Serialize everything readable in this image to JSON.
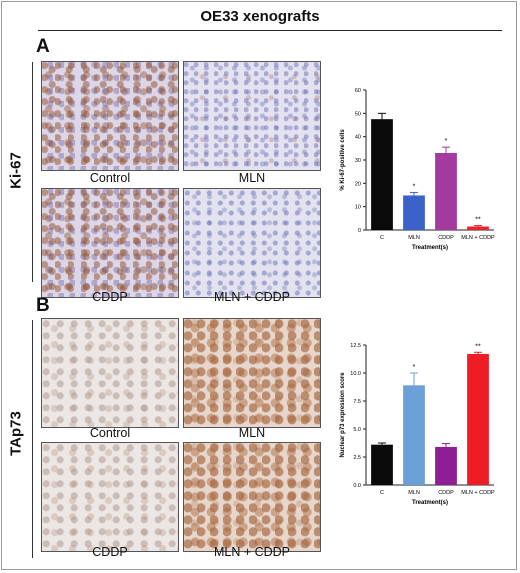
{
  "figure_title": "OE33 xenografts",
  "panels": [
    {
      "letter": "A",
      "stain": "Ki-67",
      "images": [
        {
          "caption": "Control",
          "pattern": "ki"
        },
        {
          "caption": "MLN",
          "pattern": "ki-low"
        },
        {
          "caption": "CDDP",
          "pattern": "ki"
        },
        {
          "caption": "MLN + CDDP",
          "pattern": "ki-none"
        }
      ]
    },
    {
      "letter": "B",
      "stain": "TAp73",
      "images": [
        {
          "caption": "Control",
          "pattern": "tp-low"
        },
        {
          "caption": "MLN",
          "pattern": "tp-high"
        },
        {
          "caption": "CDDP",
          "pattern": "tp-low"
        },
        {
          "caption": "MLN + CDDP",
          "pattern": "tp-high"
        }
      ]
    }
  ],
  "chart_data": [
    {
      "type": "bar",
      "categories": [
        "C",
        "MLN",
        "CDDP",
        "MLN + CDDP"
      ],
      "values": [
        47.5,
        14.8,
        33.0,
        1.5
      ],
      "errors": [
        2.5,
        1.3,
        2.5,
        0.4
      ],
      "annotations": [
        "",
        "*",
        "*",
        "**"
      ],
      "colors": [
        "#0a0a0a",
        "#3b62c8",
        "#a23aa0",
        "#e8252b"
      ],
      "ylabel": "% Ki-67-positive cells",
      "xlabel": "Treatment(s)",
      "ylim": [
        0,
        60
      ],
      "yticks": [
        0,
        10,
        20,
        30,
        40,
        50,
        60
      ],
      "ytick_labels": [
        "0",
        "10",
        "20",
        "30",
        "40",
        "50",
        "60"
      ]
    },
    {
      "type": "bar",
      "categories": [
        "C",
        "MLN",
        "CDDP",
        "MLN + CDDP"
      ],
      "values": [
        3.6,
        8.9,
        3.4,
        11.7
      ],
      "errors": [
        0.15,
        1.1,
        0.3,
        0.15
      ],
      "annotations": [
        "",
        "*",
        "",
        "**"
      ],
      "colors": [
        "#0a0a0a",
        "#6a9fd8",
        "#8e1e93",
        "#ee1c24"
      ],
      "ylabel": "Nuclear p73 expression score",
      "xlabel": "Treatment(s)",
      "ylim": [
        0,
        12.5
      ],
      "yticks": [
        0,
        2.5,
        5,
        7.5,
        10,
        12.5
      ],
      "ytick_labels": [
        "0.0",
        "2.5",
        "5.0",
        "7.5",
        "10.0",
        "12.5"
      ]
    }
  ]
}
